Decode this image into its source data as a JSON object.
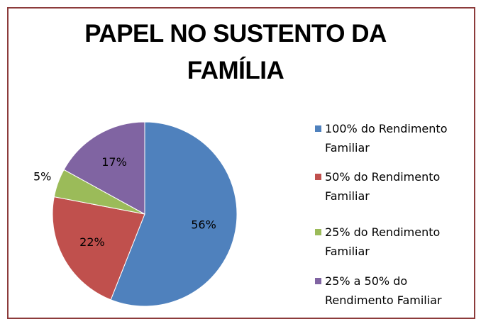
{
  "chart_data": {
    "type": "pie",
    "title": "PAPEL NO SUSTENTO DA FAMÍLIA",
    "categories": [
      "100% do Rendimento Familiar",
      "50% do Rendimento Familiar",
      "25% do Rendimento Familiar",
      "25% a 50% do Rendimento Familiar"
    ],
    "values": [
      56,
      22,
      5,
      17
    ],
    "value_labels": [
      "56%",
      "22%",
      "5%",
      "17%"
    ],
    "colors": [
      "#4f81bd",
      "#c0504d",
      "#9bbb59",
      "#8064a2"
    ],
    "legend": "right"
  }
}
